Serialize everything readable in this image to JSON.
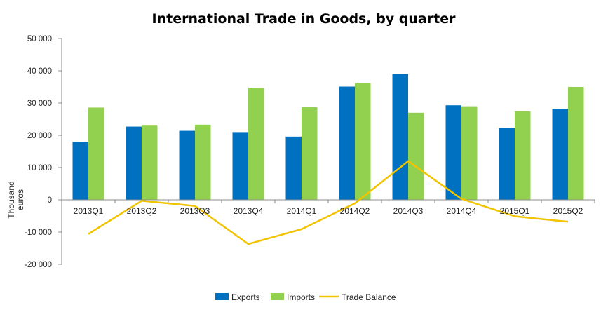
{
  "chart_data": {
    "type": "bar",
    "title": "International Trade in Goods, by quarter",
    "ylabel_lines": [
      "Thousand",
      "euros"
    ],
    "ylim": [
      -20000,
      50000
    ],
    "yticks": [
      50000,
      40000,
      30000,
      20000,
      10000,
      0,
      -10000,
      -20000
    ],
    "ytick_labels": [
      "50 000",
      "40 000",
      "30 000",
      "20 000",
      "10 000",
      "0",
      "-10 000",
      "-20 000"
    ],
    "categories": [
      "2013Q1",
      "2013Q2",
      "2013Q3",
      "2013Q4",
      "2014Q1",
      "2014Q2",
      "2014Q3",
      "2014Q4",
      "2015Q1",
      "2015Q2"
    ],
    "series": [
      {
        "name": "Exports",
        "type": "bar",
        "color": "#0070C0",
        "values": [
          18000,
          22700,
          21400,
          21000,
          19600,
          35100,
          39000,
          29300,
          22300,
          28200
        ]
      },
      {
        "name": "Imports",
        "type": "bar",
        "color": "#92D050",
        "values": [
          28600,
          23000,
          23300,
          34700,
          28700,
          36200,
          27000,
          29000,
          27400,
          35000
        ]
      },
      {
        "name": "Trade Balance",
        "type": "line",
        "color": "#F2C300",
        "values": [
          -10600,
          -300,
          -1900,
          -13700,
          -9100,
          -1100,
          12000,
          300,
          -5100,
          -6800
        ]
      }
    ],
    "grid": false,
    "legend": "bottom"
  }
}
